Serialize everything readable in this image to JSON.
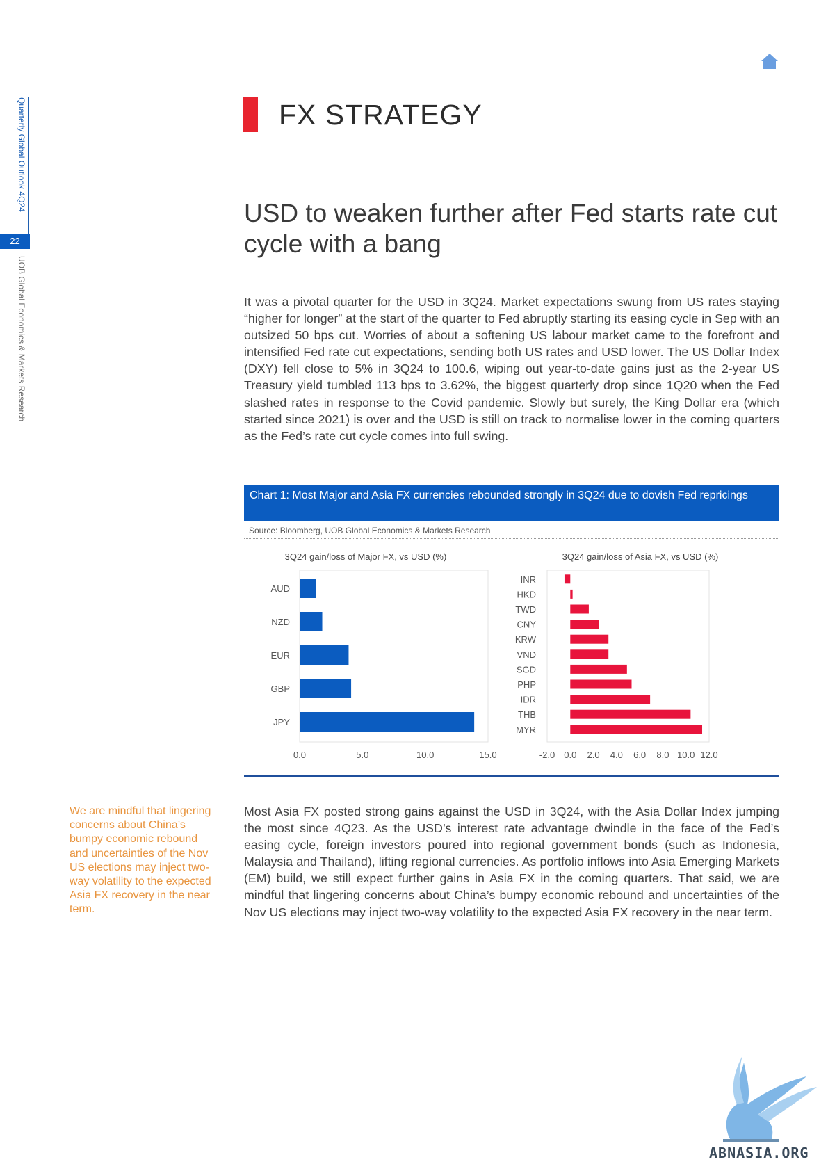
{
  "sidebar": {
    "publication": "Quarterly Global Outlook 4Q24",
    "page_number": "22",
    "organization": "UOB Global Economics & Markets Research"
  },
  "section": {
    "title": "FX STRATEGY"
  },
  "headline": "USD to weaken further after Fed starts rate cut cycle with a bang",
  "paragraph1": "It was a pivotal quarter for the USD in 3Q24. Market expectations swung from US rates staying “higher for longer” at the start of the quarter to Fed abruptly starting its easing cycle in Sep with an outsized 50 bps cut. Worries of about a softening US labour market came to the forefront and intensified Fed rate cut expectations, sending both US rates and USD lower. The US Dollar Index (DXY) fell close to 5% in 3Q24 to 100.6, wiping out year-to-date gains just as the 2-year US Treasury yield tumbled 113 bps to 3.62%, the biggest quarterly drop since 1Q20 when the Fed slashed rates in response to the Covid pandemic. Slowly but surely, the King Dollar era (which started since 2021) is over and the USD is still on track to normalise lower in the coming quarters as the Fed’s rate cut cycle comes into full swing.",
  "chart": {
    "caption": "Chart 1: Most Major and Asia FX currencies rebounded strongly in 3Q24 due to dovish Fed repricings",
    "source": "Source: Bloomberg, UOB Global Economics & Markets Research"
  },
  "chart_data": [
    {
      "type": "bar",
      "orientation": "horizontal",
      "title": "3Q24 gain/loss of Major FX, vs USD (%)",
      "categories": [
        "AUD",
        "NZD",
        "EUR",
        "GBP",
        "JPY"
      ],
      "values": [
        1.3,
        1.8,
        3.9,
        4.1,
        13.9
      ],
      "xlim": [
        0,
        15
      ],
      "xticks": [
        "0.0",
        "5.0",
        "10.0",
        "15.0"
      ],
      "color": "#0b5cc0"
    },
    {
      "type": "bar",
      "orientation": "horizontal",
      "title": "3Q24 gain/loss of Asia FX, vs USD (%)",
      "categories": [
        "INR",
        "HKD",
        "TWD",
        "CNY",
        "KRW",
        "VND",
        "SGD",
        "PHP",
        "IDR",
        "THB",
        "MYR"
      ],
      "values": [
        -0.5,
        0.2,
        1.6,
        2.5,
        3.3,
        3.3,
        4.9,
        5.3,
        6.9,
        10.4,
        11.4
      ],
      "xlim": [
        -2,
        12
      ],
      "xticks": [
        "-2.0",
        "0.0",
        "2.0",
        "4.0",
        "6.0",
        "8.0",
        "10.0",
        "12.0"
      ],
      "color": "#e8143c"
    }
  ],
  "sidenote": "We are mindful that lingering concerns about China’s bumpy economic rebound and uncertainties of the Nov US elections may inject two-way volatility to the expected Asia FX recovery in the near term.",
  "paragraph2": "Most Asia FX posted strong gains against the USD in 3Q24, with the Asia Dollar Index jumping the most since 4Q23. As the USD’s interest rate advantage dwindle in the face of the Fed’s easing cycle, foreign investors poured into regional government bonds (such as Indonesia, Malaysia and Thailand), lifting regional currencies. As portfolio inflows into Asia Emerging Markets (EM) build, we still expect further gains in Asia FX in the coming quarters. That said, we are mindful that lingering concerns about China’s bumpy economic rebound and uncertainties of the Nov US elections may inject two-way volatility to the expected Asia FX recovery in the near term.",
  "watermark": {
    "text": "ABNASIA.ORG",
    "icon": "pegasus-logo-icon"
  }
}
